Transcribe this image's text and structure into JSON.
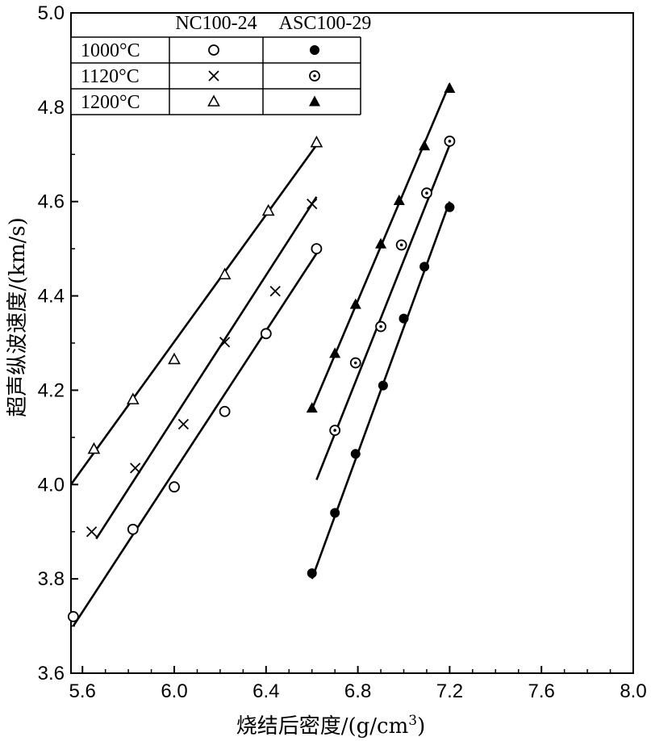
{
  "chart_data": {
    "type": "scatter",
    "xlabel": "烧结后密度/(g/cm",
    "xlabel_sup": "3",
    "xlabel_close": ")",
    "ylabel": "超声纵波速度/(km/s)",
    "xlim": [
      5.55,
      8.0
    ],
    "ylim": [
      3.6,
      5.0
    ],
    "x_ticks": [
      "5.6",
      "6.0",
      "6.4",
      "6.8",
      "7.2",
      "7.6",
      "8.0"
    ],
    "y_ticks": [
      "3.6",
      "3.8",
      "4.0",
      "4.2",
      "4.4",
      "4.6",
      "4.8",
      "5.0"
    ],
    "grid": false,
    "legend": {
      "placement": "top-left",
      "columns": [
        "NC100-24",
        "ASC100-29"
      ],
      "rows": [
        "1000°C",
        "1120°C",
        "1200°C"
      ]
    },
    "series": [
      {
        "name": "NC100-24 1000°C",
        "marker": "open-circle",
        "points": [
          [
            5.56,
            3.72
          ],
          [
            5.82,
            3.905
          ],
          [
            6.0,
            3.995
          ],
          [
            6.22,
            4.155
          ],
          [
            6.4,
            4.32
          ],
          [
            6.62,
            4.5
          ]
        ],
        "fit": [
          [
            5.56,
            3.7
          ],
          [
            6.62,
            4.49
          ]
        ]
      },
      {
        "name": "NC100-24 1120°C",
        "marker": "cross",
        "points": [
          [
            5.64,
            3.9
          ],
          [
            5.83,
            4.035
          ],
          [
            6.04,
            4.128
          ],
          [
            6.22,
            4.302
          ],
          [
            6.44,
            4.41
          ],
          [
            6.6,
            4.595
          ]
        ],
        "fit": [
          [
            5.66,
            3.885
          ],
          [
            6.62,
            4.61
          ]
        ]
      },
      {
        "name": "NC100-24 1200°C",
        "marker": "open-triangle",
        "points": [
          [
            5.65,
            4.075
          ],
          [
            5.82,
            4.18
          ],
          [
            6.0,
            4.265
          ],
          [
            6.22,
            4.445
          ],
          [
            6.41,
            4.58
          ],
          [
            6.62,
            4.725
          ]
        ],
        "fit": [
          [
            5.55,
            4.0
          ],
          [
            6.62,
            4.72
          ]
        ]
      },
      {
        "name": "ASC100-29 1000°C",
        "marker": "filled-circle",
        "points": [
          [
            6.6,
            3.812
          ],
          [
            6.7,
            3.94
          ],
          [
            6.79,
            4.065
          ],
          [
            6.91,
            4.21
          ],
          [
            7.0,
            4.352
          ],
          [
            7.09,
            4.462
          ],
          [
            7.2,
            4.588
          ]
        ],
        "fit": [
          [
            6.6,
            3.8
          ],
          [
            7.2,
            4.6
          ]
        ]
      },
      {
        "name": "ASC100-29 1120°C",
        "marker": "dotted-circle",
        "points": [
          [
            6.7,
            4.115
          ],
          [
            6.79,
            4.258
          ],
          [
            6.9,
            4.335
          ],
          [
            6.99,
            4.508
          ],
          [
            7.1,
            4.618
          ],
          [
            7.2,
            4.728
          ]
        ],
        "fit": [
          [
            6.62,
            4.01
          ],
          [
            7.2,
            4.72
          ]
        ]
      },
      {
        "name": "ASC100-29 1200°C",
        "marker": "filled-triangle",
        "points": [
          [
            6.6,
            4.162
          ],
          [
            6.7,
            4.278
          ],
          [
            6.79,
            4.382
          ],
          [
            6.9,
            4.51
          ],
          [
            6.98,
            4.602
          ],
          [
            7.09,
            4.718
          ],
          [
            7.2,
            4.84
          ]
        ],
        "fit": [
          [
            6.6,
            4.16
          ],
          [
            7.2,
            4.85
          ]
        ]
      }
    ]
  }
}
